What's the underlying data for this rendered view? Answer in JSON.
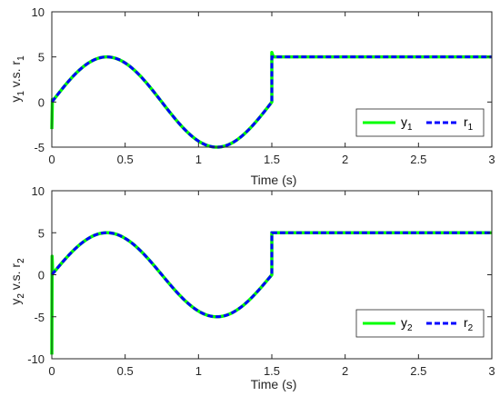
{
  "colors": {
    "y_line": "#00ff00",
    "r_line": "#0000ff",
    "axis": "#262626"
  },
  "chart_data": [
    {
      "type": "line",
      "xlabel": "Time (s)",
      "ylabel": {
        "main1": "y",
        "sub1": "1",
        "mid": " v.s. r",
        "sub2": "1"
      },
      "xlim": [
        0,
        3
      ],
      "ylim": [
        -5,
        10
      ],
      "xticks": [
        "0",
        "0.5",
        "1",
        "1.5",
        "2",
        "2.5",
        "3"
      ],
      "yticks": [
        "-5",
        "0",
        "5",
        "10"
      ],
      "legend_position": "lower-right",
      "series": [
        {
          "name": "y",
          "name_sub": "1",
          "style": "solid"
        },
        {
          "name": "r",
          "name_sub": "1",
          "style": "dashed"
        }
      ],
      "reference": {
        "sine": {
          "amplitude": 5,
          "period_s": 1.5,
          "t_end": 1.5
        },
        "step": {
          "t_start": 1.5,
          "value": 5
        }
      },
      "transient": {
        "y_start_value": -3,
        "y_jump_value_at_1_5": 5.5
      }
    },
    {
      "type": "line",
      "xlabel": "Time (s)",
      "ylabel": {
        "main1": "y",
        "sub1": "2",
        "mid": " v.s. r",
        "sub2": "2"
      },
      "xlim": [
        0,
        3
      ],
      "ylim": [
        -10,
        10
      ],
      "xticks": [
        "0",
        "0.5",
        "1",
        "1.5",
        "2",
        "2.5",
        "3"
      ],
      "yticks": [
        "-10",
        "-5",
        "0",
        "5",
        "10"
      ],
      "legend_position": "lower-right",
      "series": [
        {
          "name": "y",
          "name_sub": "2",
          "style": "solid"
        },
        {
          "name": "r",
          "name_sub": "2",
          "style": "dashed"
        }
      ],
      "reference": {
        "sine": {
          "amplitude": 5,
          "period_s": 1.5,
          "t_end": 1.5
        },
        "step": {
          "t_start": 1.5,
          "value": 5
        }
      },
      "transient": {
        "y_start_value": -9.5,
        "y_spike_value": 2.2
      }
    }
  ]
}
